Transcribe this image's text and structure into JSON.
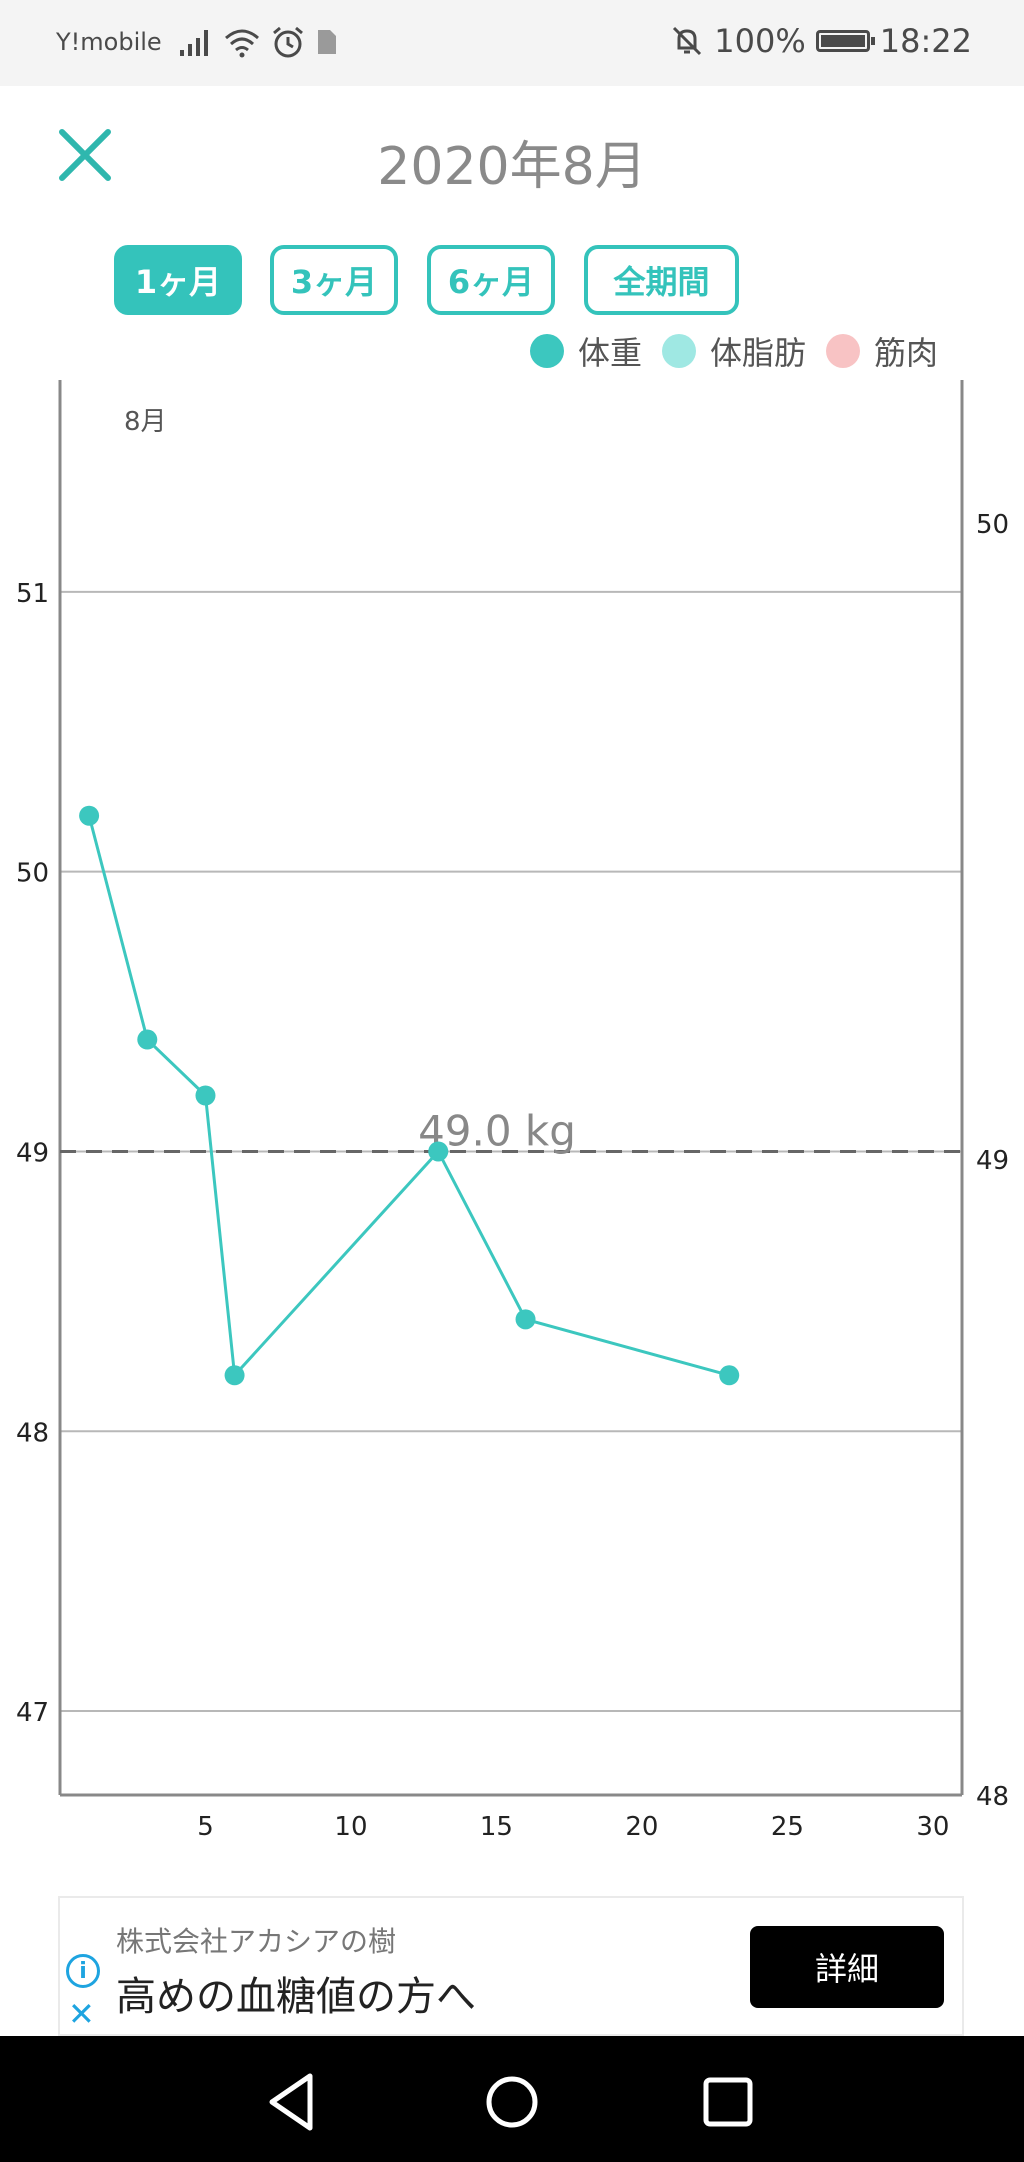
{
  "status_bar": {
    "carrier": "Y!mobile",
    "battery": "100%",
    "time": "18:22"
  },
  "header": {
    "title": "2020年8月"
  },
  "range_tabs": [
    {
      "label": "1ヶ月",
      "active": true
    },
    {
      "label": "3ヶ月",
      "active": false
    },
    {
      "label": "6ヶ月",
      "active": false
    },
    {
      "label": "全期間",
      "active": false
    }
  ],
  "legend": [
    {
      "label": "体重",
      "color": "#3cc7bf"
    },
    {
      "label": "体脂肪",
      "color": "#9fe8e3"
    },
    {
      "label": "筋肉",
      "color": "#f8c3c4"
    }
  ],
  "chart_data": {
    "type": "line",
    "month_label": "8月",
    "x_ticks": [
      5,
      10,
      15,
      20,
      25,
      30
    ],
    "xlim": [
      0,
      31
    ],
    "y_left_ticks": [
      47,
      48,
      49,
      50,
      51
    ],
    "ylim_left": [
      46.7,
      51.7
    ],
    "y_right_ticks": [
      48,
      49,
      50
    ],
    "ylim_right": [
      48.0,
      50.2
    ],
    "series": [
      {
        "name": "体重",
        "color": "#3cc7bf",
        "points": [
          {
            "x": 1,
            "y": 50.2
          },
          {
            "x": 3,
            "y": 49.4
          },
          {
            "x": 5,
            "y": 49.2
          },
          {
            "x": 6,
            "y": 48.2
          },
          {
            "x": 13,
            "y": 49.0
          },
          {
            "x": 16,
            "y": 48.4
          },
          {
            "x": 23,
            "y": 48.2
          }
        ]
      }
    ],
    "target_line": {
      "value": 49.0,
      "label": "49.0 kg"
    }
  },
  "ad": {
    "advertiser": "株式会社アカシアの樹",
    "headline": "高めの血糖値の方へ",
    "cta": "詳細"
  }
}
